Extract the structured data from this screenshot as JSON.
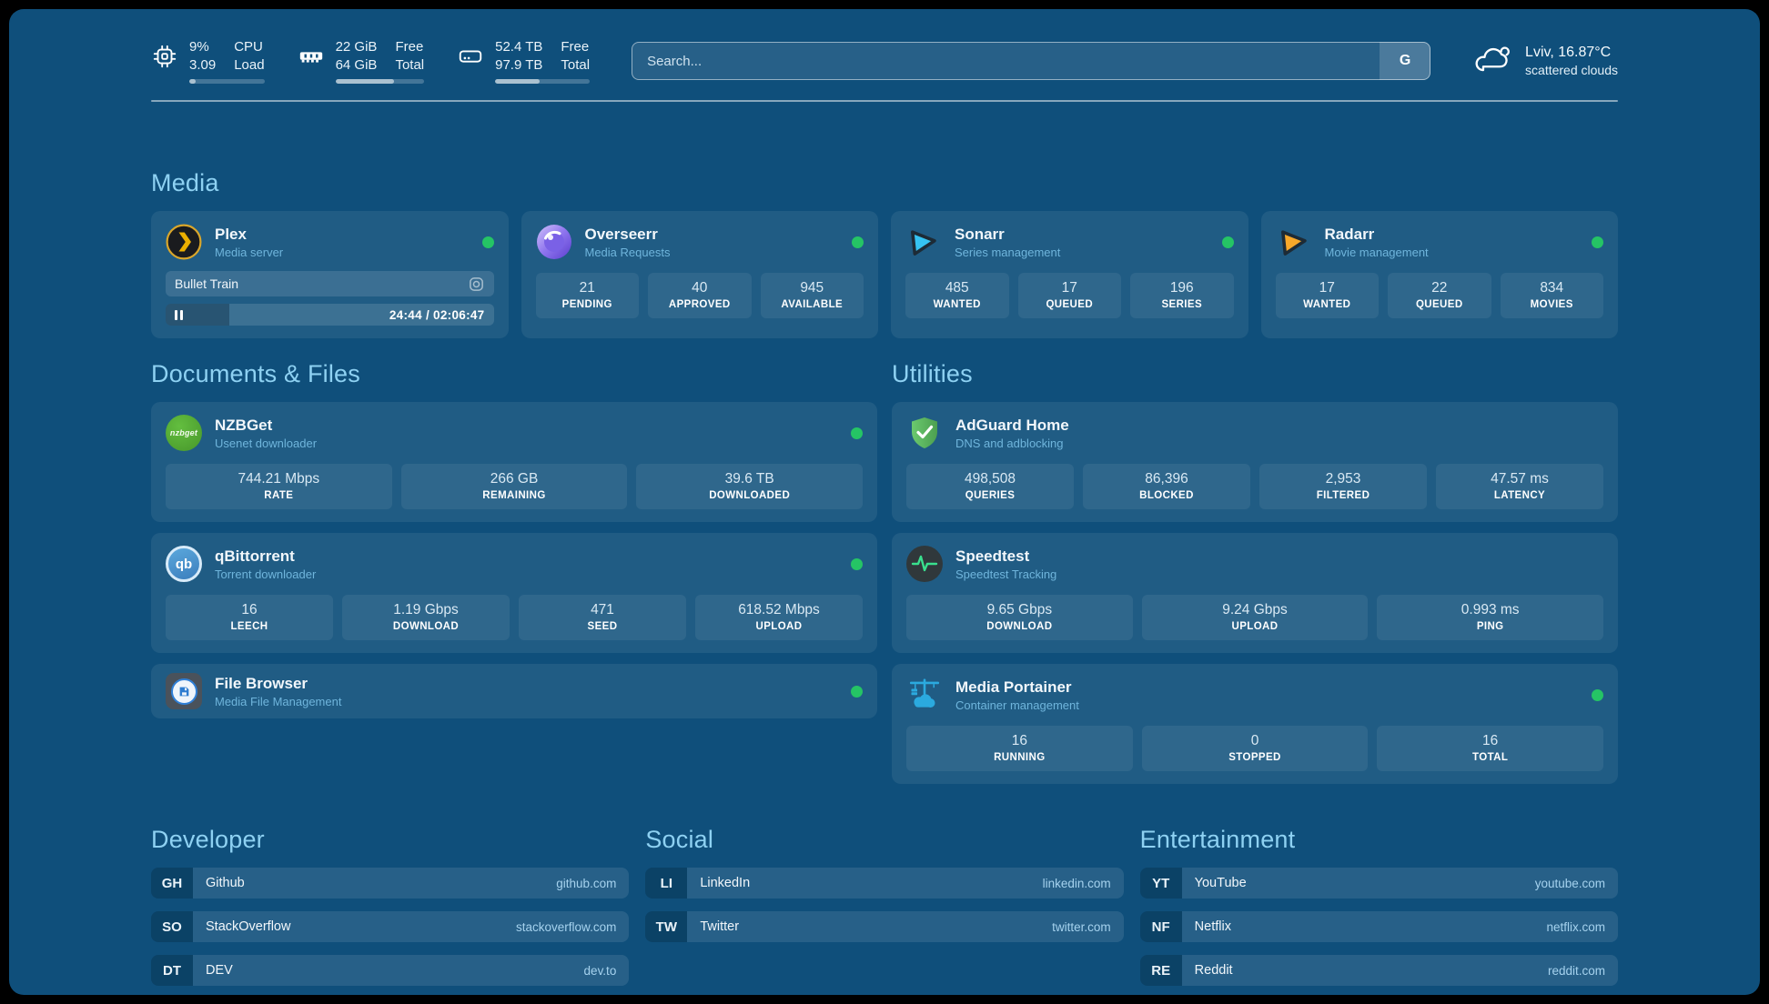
{
  "topbar": {
    "resources": [
      {
        "name": "cpu",
        "value_top": "9%",
        "value_bottom": "3.09",
        "label_top": "CPU",
        "label_bottom": "Load",
        "percent": 9
      },
      {
        "name": "memory",
        "value_top": "22 GiB",
        "value_bottom": "64 GiB",
        "label_top": "Free",
        "label_bottom": "Total",
        "percent": 66
      },
      {
        "name": "disk",
        "value_top": "52.4 TB",
        "value_bottom": "97.9 TB",
        "label_top": "Free",
        "label_bottom": "Total",
        "percent": 47
      }
    ],
    "search": {
      "placeholder": "Search...",
      "button_label": "G"
    },
    "weather": {
      "location_temp": "Lviv, 16.87°C",
      "condition": "scattered clouds"
    }
  },
  "sections": {
    "media": "Media",
    "documents": "Documents & Files",
    "utilities": "Utilities",
    "developer": "Developer",
    "social": "Social",
    "entertainment": "Entertainment"
  },
  "cards": {
    "plex": {
      "name": "Plex",
      "subtitle": "Media server",
      "now_playing": "Bullet Train",
      "time": "24:44 / 02:06:47",
      "progress_percent": 19.5
    },
    "overseerr": {
      "name": "Overseerr",
      "subtitle": "Media Requests",
      "stats": [
        {
          "value": "21",
          "label": "PENDING"
        },
        {
          "value": "40",
          "label": "APPROVED"
        },
        {
          "value": "945",
          "label": "AVAILABLE"
        }
      ]
    },
    "sonarr": {
      "name": "Sonarr",
      "subtitle": "Series management",
      "stats": [
        {
          "value": "485",
          "label": "WANTED"
        },
        {
          "value": "17",
          "label": "QUEUED"
        },
        {
          "value": "196",
          "label": "SERIES"
        }
      ]
    },
    "radarr": {
      "name": "Radarr",
      "subtitle": "Movie management",
      "stats": [
        {
          "value": "17",
          "label": "WANTED"
        },
        {
          "value": "22",
          "label": "QUEUED"
        },
        {
          "value": "834",
          "label": "MOVIES"
        }
      ]
    },
    "nzbget": {
      "name": "NZBGet",
      "subtitle": "Usenet downloader",
      "icon_text": "nzbget",
      "stats": [
        {
          "value": "744.21 Mbps",
          "label": "RATE"
        },
        {
          "value": "266 GB",
          "label": "REMAINING"
        },
        {
          "value": "39.6 TB",
          "label": "DOWNLOADED"
        }
      ]
    },
    "qbittorrent": {
      "name": "qBittorrent",
      "subtitle": "Torrent downloader",
      "icon_text": "qb",
      "stats": [
        {
          "value": "16",
          "label": "LEECH"
        },
        {
          "value": "1.19 Gbps",
          "label": "DOWNLOAD"
        },
        {
          "value": "471",
          "label": "SEED"
        },
        {
          "value": "618.52 Mbps",
          "label": "UPLOAD"
        }
      ]
    },
    "filebrowser": {
      "name": "File Browser",
      "subtitle": "Media File Management"
    },
    "adguard": {
      "name": "AdGuard Home",
      "subtitle": "DNS and adblocking",
      "stats": [
        {
          "value": "498,508",
          "label": "QUERIES"
        },
        {
          "value": "86,396",
          "label": "BLOCKED"
        },
        {
          "value": "2,953",
          "label": "FILTERED"
        },
        {
          "value": "47.57 ms",
          "label": "LATENCY"
        }
      ]
    },
    "speedtest": {
      "name": "Speedtest",
      "subtitle": "Speedtest Tracking",
      "stats": [
        {
          "value": "9.65 Gbps",
          "label": "DOWNLOAD"
        },
        {
          "value": "9.24 Gbps",
          "label": "UPLOAD"
        },
        {
          "value": "0.993 ms",
          "label": "PING"
        }
      ]
    },
    "portainer": {
      "name": "Media Portainer",
      "subtitle": "Container management",
      "stats": [
        {
          "value": "16",
          "label": "RUNNING"
        },
        {
          "value": "0",
          "label": "STOPPED"
        },
        {
          "value": "16",
          "label": "TOTAL"
        }
      ]
    }
  },
  "bookmarks": {
    "developer": [
      {
        "abbr": "GH",
        "name": "Github",
        "url": "github.com"
      },
      {
        "abbr": "SO",
        "name": "StackOverflow",
        "url": "stackoverflow.com"
      },
      {
        "abbr": "DT",
        "name": "DEV",
        "url": "dev.to"
      }
    ],
    "social": [
      {
        "abbr": "LI",
        "name": "LinkedIn",
        "url": "linkedin.com"
      },
      {
        "abbr": "TW",
        "name": "Twitter",
        "url": "twitter.com"
      }
    ],
    "entertainment": [
      {
        "abbr": "YT",
        "name": "YouTube",
        "url": "youtube.com"
      },
      {
        "abbr": "NF",
        "name": "Netflix",
        "url": "netflix.com"
      },
      {
        "abbr": "RE",
        "name": "Reddit",
        "url": "reddit.com"
      }
    ]
  },
  "colors": {
    "status_online": "#25C465",
    "accent_header": "#8ED1F2",
    "background": "#0F4F7B"
  }
}
